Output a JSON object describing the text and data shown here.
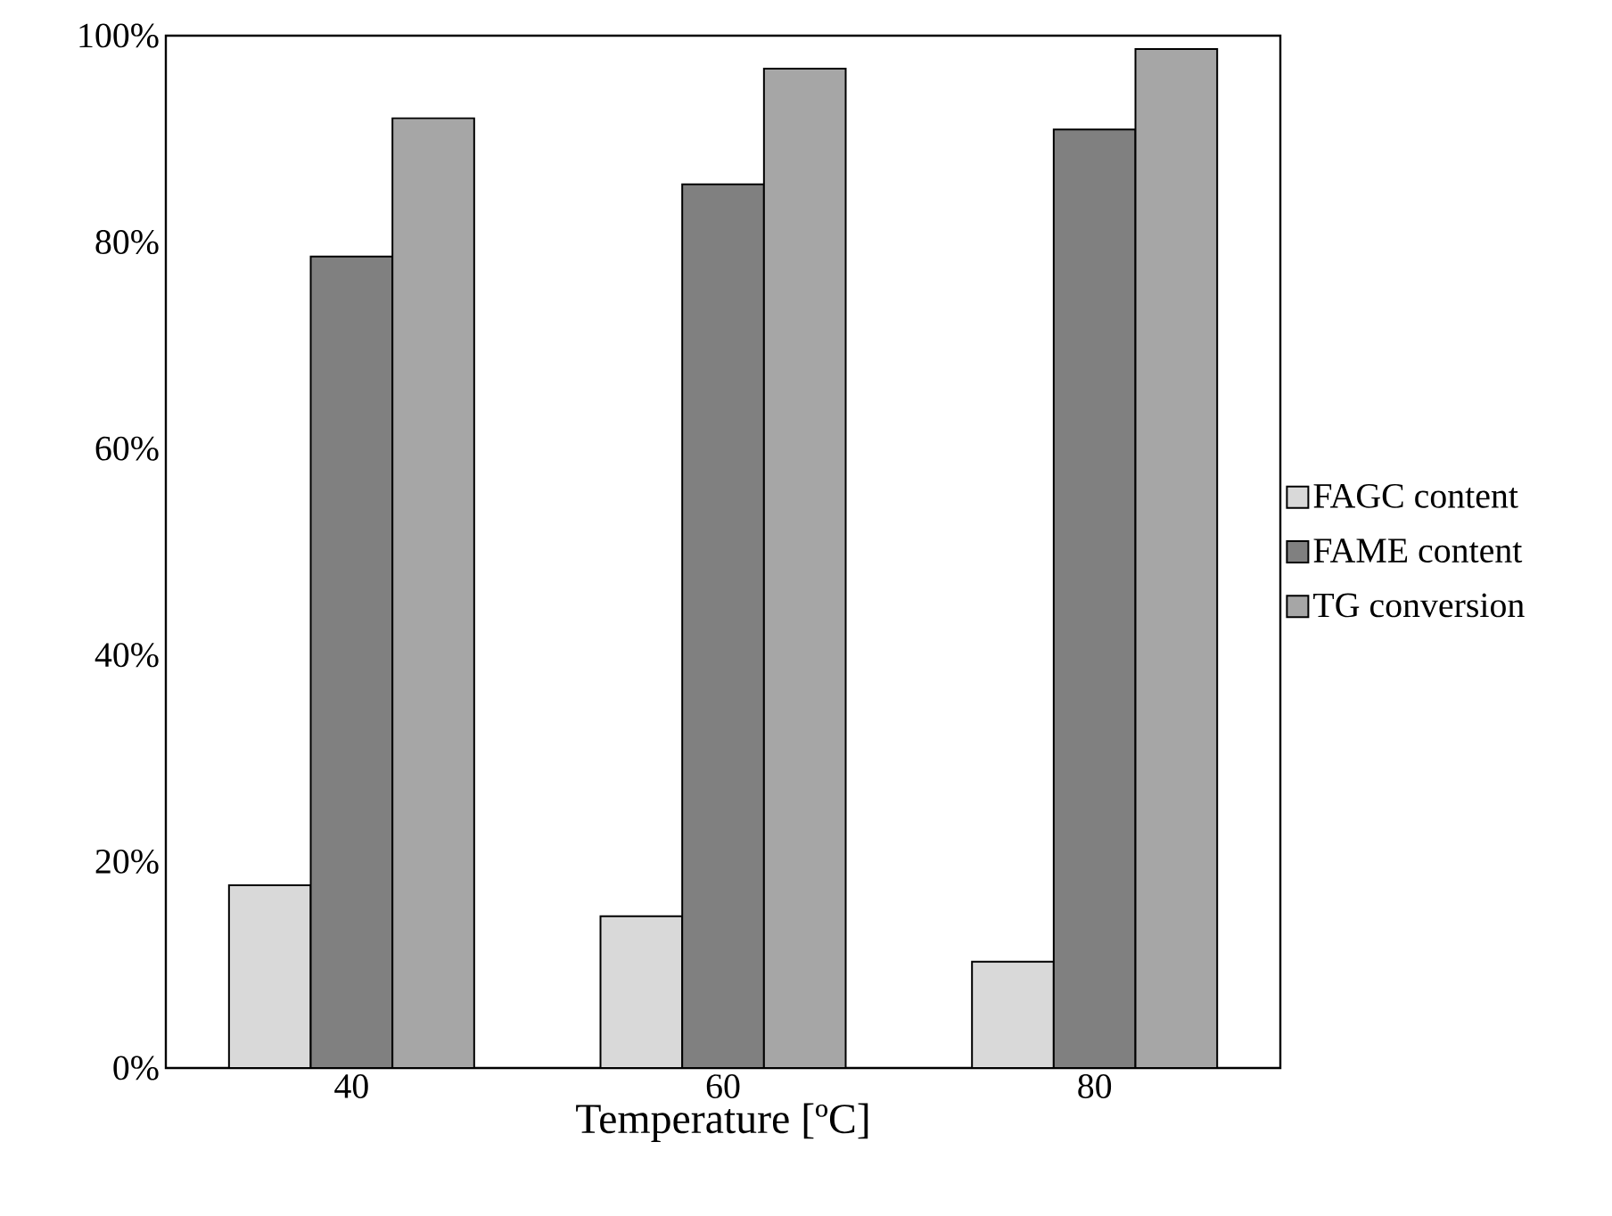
{
  "chart_data": {
    "type": "bar",
    "xlabel": "Temperature [ºC]",
    "categories": [
      "40",
      "60",
      "80"
    ],
    "series": [
      {
        "name": "FAGC content",
        "color": "#d9d9d9",
        "values": [
          17.7,
          14.7,
          10.3
        ]
      },
      {
        "name": "FAME content",
        "color": "#808080",
        "values": [
          78.6,
          85.6,
          90.9
        ]
      },
      {
        "name": "TG conversion",
        "color": "#a6a6a6",
        "values": [
          92.0,
          96.8,
          98.7
        ]
      }
    ],
    "ylim": [
      0,
      100
    ],
    "yticks": [
      {
        "value": 0,
        "label": "0%"
      },
      {
        "value": 20,
        "label": "20%"
      },
      {
        "value": 40,
        "label": "40%"
      },
      {
        "value": 60,
        "label": "60%"
      },
      {
        "value": 80,
        "label": "80%"
      },
      {
        "value": 100,
        "label": "100%"
      }
    ],
    "legend": "right",
    "grid": false
  }
}
